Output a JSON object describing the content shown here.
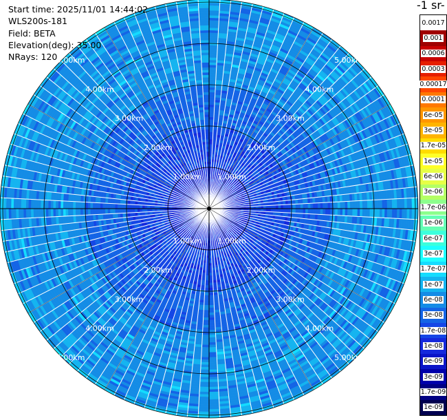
{
  "header": {
    "start_time": "Start time: 2025/11/01 14:44:02",
    "instrument": "WLS200s-181",
    "field": "Field: BETA",
    "elevation": "Elevation(deg): 35.00",
    "nrays": "NRays: 120"
  },
  "colorbar": {
    "unit_title": "-1 sr-",
    "levels": [
      "0.0017",
      "0.001",
      "0.0006",
      "0.0003",
      "0.00017",
      "0.0001",
      "6e-05",
      "3e-05",
      "1.7e-05",
      "1e-05",
      "6e-06",
      "3e-06",
      "1.7e-06",
      "1e-06",
      "6e-07",
      "3e-07",
      "1.7e-07",
      "1e-07",
      "6e-08",
      "3e-08",
      "1.7e-08",
      "1e-08",
      "6e-09",
      "3e-09",
      "1.7e-09",
      "1e-09"
    ],
    "colors": [
      "#ffffff",
      "#a00000",
      "#c80000",
      "#e61e00",
      "#ff4600",
      "#ff7800",
      "#ff9600",
      "#ffb400",
      "#ffdc00",
      "#ffff28",
      "#e6ff46",
      "#b4ff64",
      "#8cff8c",
      "#64ffb4",
      "#3cffdc",
      "#1effff",
      "#14dcff",
      "#14b4f0",
      "#148ce6",
      "#1464e6",
      "#1446e6",
      "#1428dc",
      "#0a14c8",
      "#0000aa",
      "#000082",
      "#000050"
    ]
  },
  "range_labels": [
    "1.00km",
    "2.00km",
    "3.00km",
    "4.00km",
    "5.00km"
  ],
  "chart_data": {
    "type": "heatmap",
    "title": "",
    "field": "BETA",
    "elevation_deg": 35.0,
    "n_rays": 120,
    "range_rings_km": [
      1,
      2,
      3,
      4,
      5
    ],
    "azimuth_lines_deg": [
      0,
      90,
      180,
      270
    ],
    "dominant_value_by_range_km": [
      {
        "range_km": 0.5,
        "value": "1e-08"
      },
      {
        "range_km": 1.0,
        "value": "1.7e-08"
      },
      {
        "range_km": 2.0,
        "value": "3e-08"
      },
      {
        "range_km": 3.0,
        "value": "6e-08"
      },
      {
        "range_km": 4.0,
        "value": "6e-08"
      },
      {
        "range_km": 5.0,
        "value": "1e-07"
      }
    ],
    "colorbar_levels": [
      "0.0017",
      "0.001",
      "0.0006",
      "0.0003",
      "0.00017",
      "0.0001",
      "6e-05",
      "3e-05",
      "1.7e-05",
      "1e-05",
      "6e-06",
      "3e-06",
      "1.7e-06",
      "1e-06",
      "6e-07",
      "3e-07",
      "1.7e-07",
      "1e-07",
      "6e-08",
      "3e-08",
      "1.7e-08",
      "1e-08",
      "6e-09",
      "3e-09",
      "1.7e-09",
      "1e-09"
    ]
  }
}
